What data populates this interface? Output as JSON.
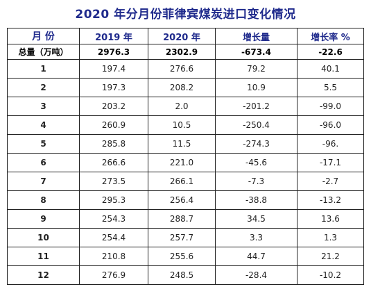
{
  "title": "2020 年分月份菲律宾煤炭进口变化情况",
  "headers": {
    "month": "月 份",
    "y2019": "2019 年",
    "y2020": "2020 年",
    "change": "增长量",
    "rate": "增长率 %"
  },
  "total": {
    "label": "总量（万吨）",
    "y2019": "2976.3",
    "y2020": "2302.9",
    "change": "-673.4",
    "rate": "-22.6"
  },
  "rows": [
    {
      "month": "1",
      "y2019": "197.4",
      "y2020": "276.6",
      "change": "79.2",
      "rate": "40.1"
    },
    {
      "month": "2",
      "y2019": "197.3",
      "y2020": "208.2",
      "change": "10.9",
      "rate": "5.5"
    },
    {
      "month": "3",
      "y2019": "203.2",
      "y2020": "2.0",
      "change": "-201.2",
      "rate": "-99.0"
    },
    {
      "month": "4",
      "y2019": "260.9",
      "y2020": "10.5",
      "change": "-250.4",
      "rate": "-96.0"
    },
    {
      "month": "5",
      "y2019": "285.8",
      "y2020": "11.5",
      "change": "-274.3",
      "rate": "-96."
    },
    {
      "month": "6",
      "y2019": "266.6",
      "y2020": "221.0",
      "change": "-45.6",
      "rate": "-17.1"
    },
    {
      "month": "7",
      "y2019": "273.5",
      "y2020": "266.1",
      "change": "-7.3",
      "rate": "-2.7"
    },
    {
      "month": "8",
      "y2019": "295.3",
      "y2020": "256.4",
      "change": "-38.8",
      "rate": "-13.2"
    },
    {
      "month": "9",
      "y2019": "254.3",
      "y2020": "288.7",
      "change": "34.5",
      "rate": "13.6"
    },
    {
      "month": "10",
      "y2019": "254.4",
      "y2020": "257.7",
      "change": "3.3",
      "rate": "1.3"
    },
    {
      "month": "11",
      "y2019": "210.8",
      "y2020": "255.6",
      "change": "44.7",
      "rate": "21.2"
    },
    {
      "month": "12",
      "y2019": "276.9",
      "y2020": "248.5",
      "change": "-28.4",
      "rate": "-10.2"
    }
  ],
  "colors": {
    "header_text": "#1f2a8c",
    "border": "#222222"
  }
}
